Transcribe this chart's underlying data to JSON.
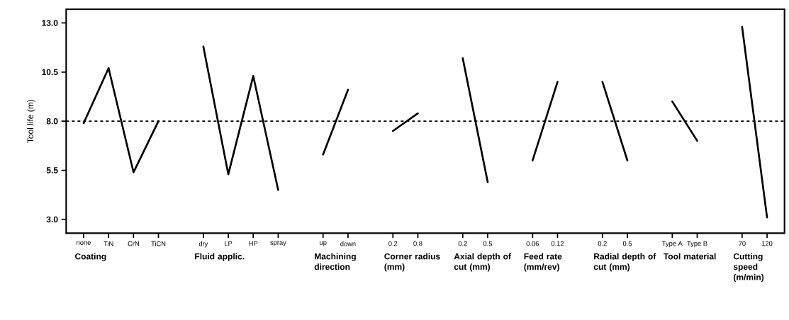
{
  "chart_data": {
    "type": "line",
    "ylabel": "Tool life (m)",
    "categories": [
      "none",
      "TiN",
      "CrN",
      "TiCN",
      "dry",
      "LP",
      "HP",
      "spray",
      "up",
      "down",
      "0.2",
      "0.8",
      "0.2",
      "0.5",
      "0.06",
      "0.12",
      "0.2",
      "0.5",
      "Type A",
      "Type B",
      "70",
      "120"
    ],
    "series": [
      {
        "color": "#000000",
        "values": [
          7.9,
          10.7,
          5.4,
          8.0,
          null,
          null,
          null,
          null,
          null,
          null,
          null,
          null,
          null,
          null,
          null,
          null,
          null,
          null,
          null,
          null,
          null,
          null
        ]
      },
      {
        "color": "#000000",
        "values": [
          null,
          null,
          null,
          null,
          11.8,
          5.3,
          10.3,
          4.5,
          null,
          null,
          null,
          null,
          null,
          null,
          null,
          null,
          null,
          null,
          null,
          null,
          null,
          null
        ]
      },
      {
        "color": "#000000",
        "values": [
          null,
          null,
          null,
          null,
          null,
          null,
          null,
          null,
          6.3,
          9.6,
          null,
          null,
          null,
          null,
          null,
          null,
          null,
          null,
          null,
          null,
          null,
          null
        ]
      },
      {
        "color": "#000000",
        "values": [
          null,
          null,
          null,
          null,
          null,
          null,
          null,
          null,
          null,
          null,
          7.5,
          8.4,
          null,
          null,
          null,
          null,
          null,
          null,
          null,
          null,
          null,
          null
        ]
      },
      {
        "color": "#000000",
        "values": [
          null,
          null,
          null,
          null,
          null,
          null,
          null,
          null,
          null,
          null,
          null,
          null,
          11.2,
          4.9,
          null,
          null,
          null,
          null,
          null,
          null,
          null,
          null
        ]
      },
      {
        "color": "#000000",
        "values": [
          null,
          null,
          null,
          null,
          null,
          null,
          null,
          null,
          null,
          null,
          null,
          null,
          null,
          null,
          6.0,
          10.0,
          null,
          null,
          null,
          null,
          null,
          null
        ]
      },
      {
        "color": "#000000",
        "values": [
          null,
          null,
          null,
          null,
          null,
          null,
          null,
          null,
          null,
          null,
          null,
          null,
          null,
          null,
          null,
          null,
          10.0,
          6.0,
          null,
          null,
          null,
          null
        ]
      },
      {
        "color": "#000000",
        "values": [
          null,
          null,
          null,
          null,
          null,
          null,
          null,
          null,
          null,
          null,
          null,
          null,
          null,
          null,
          null,
          null,
          null,
          null,
          9.0,
          7.0,
          null,
          null
        ]
      },
      {
        "color": "#000000",
        "values": [
          null,
          null,
          null,
          null,
          null,
          null,
          null,
          null,
          null,
          null,
          null,
          null,
          null,
          null,
          null,
          null,
          null,
          null,
          null,
          null,
          12.8,
          3.1
        ]
      }
    ],
    "ylim": [
      2.3,
      13.7
    ],
    "yticks": [
      {
        "value": 3,
        "label": "3.0"
      },
      {
        "value": 5.5,
        "label": "5.5"
      },
      {
        "value": 8,
        "label": "8.0"
      },
      {
        "value": 10.5,
        "label": "10.5"
      },
      {
        "value": 13,
        "label": "13.0"
      }
    ],
    "annotations": [
      "Coating",
      "Fluid applic.",
      "Machining direction",
      "Corner radius (mm)",
      "Axial depth of cut (mm)",
      "Feed rate (mm/rev)",
      "Radial depth of cut (mm)",
      "Tool material",
      "Cutting speed (m/min)"
    ],
    "marker": "none",
    "line_style": "solid",
    "ref_lines": [
      {
        "axis": "y",
        "value": 8,
        "color": "#000000",
        "line_style": "dashed"
      }
    ]
  }
}
